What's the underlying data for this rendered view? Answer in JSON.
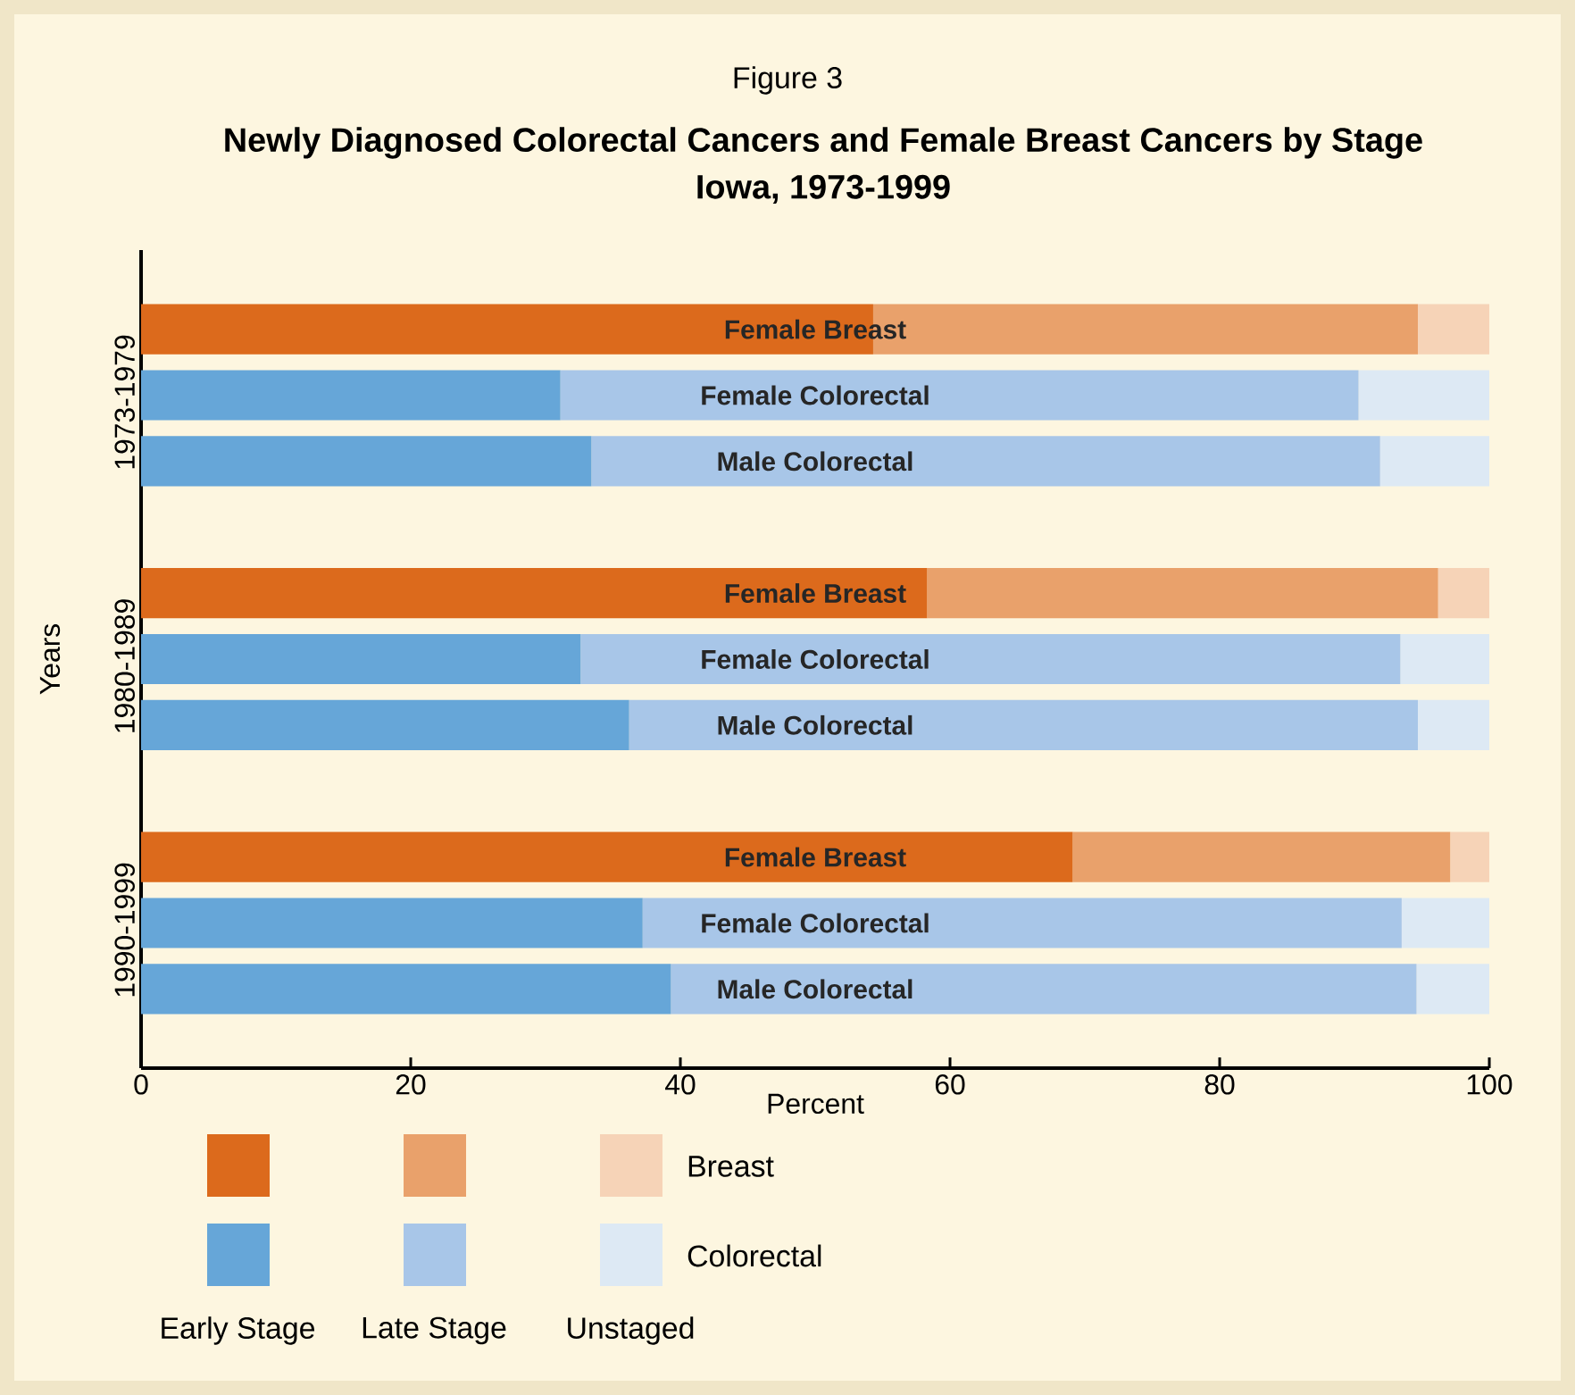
{
  "chart_data": {
    "type": "bar",
    "orientation": "horizontal",
    "stacked": true,
    "title": "Newly Diagnosed Colorectal Cancers and Female Breast Cancers by Stage",
    "subtitle": "Iowa, 1973-1999",
    "xlabel": "Percent",
    "ylabel": "Years",
    "categories": [
      "Female Breast",
      "Female Colorectal",
      "Male Colorectal",
      null,
      "Female Breast",
      "Female Colorectal",
      "Male Colorectal",
      null,
      "Female Breast",
      "Female Colorectal",
      "Male Colorectal"
    ],
    "series": [
      {
        "name": "Early Stage",
        "colors": [
          "#dc6a1c",
          "#66a6d8",
          "#66a6d8",
          null,
          "#dc6a1c",
          "#66a6d8",
          "#66a6d8",
          null,
          "#dc6a1c",
          "#66a6d8",
          "#66a6d8"
        ],
        "values": [
          54.3,
          31.1,
          33.4,
          null,
          58.3,
          32.6,
          36.2,
          null,
          69.1,
          37.2,
          39.3
        ]
      },
      {
        "name": "Late Stage",
        "colors": [
          "#e9a16b",
          "#a8c6e8",
          "#a8c6e8",
          null,
          "#e9a16b",
          "#a8c6e8",
          "#a8c6e8",
          null,
          "#e9a16b",
          "#a8c6e8",
          "#a8c6e8"
        ],
        "values": [
          40.4,
          59.2,
          58.5,
          null,
          37.9,
          60.8,
          58.5,
          null,
          28.0,
          56.3,
          55.3
        ]
      },
      {
        "name": "Unstaged",
        "colors": [
          "#f6d3b7",
          "#dde9f4",
          "#dde9f4",
          null,
          "#f6d3b7",
          "#dde9f4",
          "#dde9f4",
          null,
          "#f6d3b7",
          "#dde9f4",
          "#dde9f4"
        ],
        "values": [
          5.3,
          9.7,
          8.1,
          null,
          3.8,
          6.6,
          5.3,
          null,
          2.9,
          6.5,
          5.4
        ]
      }
    ],
    "xlim": [
      0,
      100
    ],
    "xticks": [
      0,
      20,
      40,
      60,
      80,
      100
    ],
    "legend": "bottom",
    "annotations": [
      "Figure 3",
      "1973-1979",
      "1980-1989",
      "1990-1999",
      "Breast",
      "Colorectal"
    ]
  }
}
